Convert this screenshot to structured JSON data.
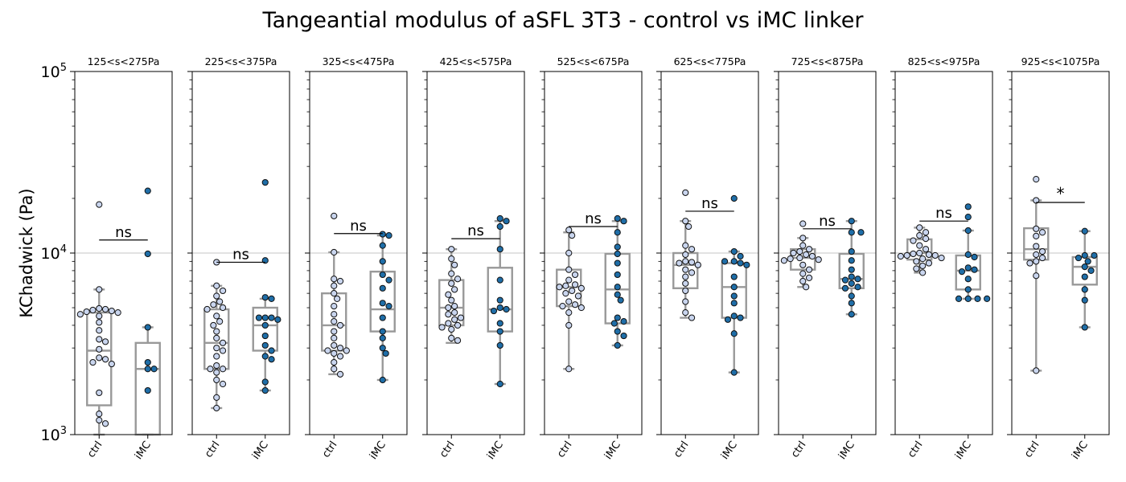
{
  "figure": {
    "title": "Tangeantial modulus of aSFL 3T3 - control vs iMC linker",
    "ylabel": "KChadwick (Pa)"
  },
  "colors": {
    "ctrl_fill": "#c9d5ee",
    "imc_fill": "#1f6ea8",
    "marker_edge": "#111111",
    "box": "#999999",
    "gridline": "#b0b0b0"
  },
  "chart_data": {
    "type": "scatter",
    "yscale": "log",
    "ylim": [
      1000,
      100000
    ],
    "y_ticks": [
      {
        "value": 1000,
        "label": "10",
        "exp": "3"
      },
      {
        "value": 10000,
        "label": "10",
        "exp": "4"
      },
      {
        "value": 100000,
        "label": "10",
        "exp": "5"
      }
    ],
    "categories": [
      "ctrl",
      "iMC"
    ],
    "grid": "horizontal line at 10^4",
    "panels": [
      {
        "title": "125<s<275Pa",
        "significance": {
          "label": "ns",
          "y": 11800
        },
        "groups": [
          {
            "name": "ctrl",
            "box": {
              "whislo": 1000,
              "q1": 1450,
              "med": 2900,
              "q3": 4700,
              "whishi": 6300
            },
            "values": [
              18500,
              6300,
              4950,
              4900,
              4850,
              4800,
              4750,
              4700,
              4600,
              4500,
              4150,
              3750,
              3350,
              3250,
              2950,
              2650,
              2600,
              2500,
              2450,
              1700,
              1300,
              1200,
              1150
            ]
          },
          {
            "name": "iMC",
            "box": {
              "whislo": 1000,
              "q1": 1000,
              "med": 2300,
              "q3": 3200,
              "whishi": 3900
            },
            "values": [
              22000,
              9900,
              3900,
              2500,
              2300,
              2300,
              1750
            ]
          }
        ]
      },
      {
        "title": "225<s<375Pa",
        "significance": {
          "label": "ns",
          "y": 8900
        },
        "groups": [
          {
            "name": "ctrl",
            "box": {
              "whislo": 1400,
              "q1": 2300,
              "med": 3200,
              "q3": 4900,
              "whishi": 6600
            },
            "values": [
              8900,
              6600,
              6200,
              5800,
              5400,
              5200,
              5000,
              4900,
              4500,
              4200,
              4000,
              3700,
              3400,
              3200,
              3000,
              2900,
              2700,
              2400,
              2300,
              2300,
              2200,
              2000,
              1900,
              1600,
              1400
            ]
          },
          {
            "name": "iMC",
            "box": {
              "whislo": 1750,
              "q1": 2900,
              "med": 4000,
              "q3": 5000,
              "whishi": 5600
            },
            "values": [
              24500,
              9100,
              5700,
              5600,
              4400,
              4400,
              4400,
              4300,
              4000,
              3500,
              3100,
              2900,
              2700,
              2600,
              1950,
              1750
            ]
          }
        ]
      },
      {
        "title": "325<s<475Pa",
        "significance": {
          "label": "ns",
          "y": 12800
        },
        "groups": [
          {
            "name": "ctrl",
            "box": {
              "whislo": 2150,
              "q1": 2900,
              "med": 4000,
              "q3": 6000,
              "whishi": 10100
            },
            "values": [
              16000,
              10100,
              7200,
              7000,
              6600,
              6000,
              5600,
              5100,
              4600,
              4200,
              4000,
              3700,
              3400,
              3100,
              3000,
              2900,
              2900,
              2800,
              2700,
              2500,
              2300,
              2150
            ]
          },
          {
            "name": "iMC",
            "box": {
              "whislo": 2000,
              "q1": 3700,
              "med": 4900,
              "q3": 7900,
              "whishi": 12500
            },
            "values": [
              12700,
              12500,
              11000,
              9000,
              7600,
              7100,
              6400,
              5300,
              5100,
              4400,
              3700,
              3400,
              3000,
              2800,
              2000
            ]
          }
        ]
      },
      {
        "title": "425<s<575Pa",
        "significance": {
          "label": "ns",
          "y": 12000
        },
        "groups": [
          {
            "name": "ctrl",
            "box": {
              "whislo": 3200,
              "q1": 4000,
              "med": 5000,
              "q3": 7100,
              "whishi": 10500
            },
            "values": [
              10500,
              9300,
              8600,
              7700,
              7200,
              6800,
              6300,
              5900,
              5500,
              5100,
              5000,
              4700,
              4600,
              4400,
              4300,
              4100,
              4000,
              3900,
              3800,
              3400,
              3300
            ]
          },
          {
            "name": "iMC",
            "box": {
              "whislo": 1900,
              "q1": 3700,
              "med": 4900,
              "q3": 8300,
              "whishi": 15000
            },
            "values": [
              15500,
              15000,
              14000,
              10500,
              7100,
              5500,
              5000,
              4900,
              4800,
              4100,
              3700,
              3100,
              1900
            ]
          }
        ]
      },
      {
        "title": "525<s<675Pa",
        "significance": {
          "label": "ns",
          "y": 14000
        },
        "groups": [
          {
            "name": "ctrl",
            "box": {
              "whislo": 2300,
              "q1": 5100,
              "med": 6500,
              "q3": 8100,
              "whishi": 13000
            },
            "values": [
              13400,
              12500,
              10000,
              8100,
              7600,
              7100,
              6700,
              6600,
              6500,
              6400,
              6200,
              6000,
              5800,
              5400,
              5200,
              5100,
              5000,
              4700,
              4000,
              2300
            ]
          },
          {
            "name": "iMC",
            "box": {
              "whislo": 3100,
              "q1": 4100,
              "med": 6300,
              "q3": 9900,
              "whishi": 15000
            },
            "values": [
              15500,
              15000,
              13000,
              10800,
              9900,
              8800,
              7600,
              6500,
              5900,
              5500,
              4400,
              4200,
              4100,
              3700,
              3500,
              3100
            ]
          }
        ]
      },
      {
        "title": "625<s<775Pa",
        "significance": {
          "label": "ns",
          "y": 17000
        },
        "groups": [
          {
            "name": "ctrl",
            "box": {
              "whislo": 4400,
              "q1": 6400,
              "med": 8600,
              "q3": 10000,
              "whishi": 15000
            },
            "values": [
              21500,
              15000,
              14000,
              11000,
              10500,
              9800,
              9000,
              8900,
              8800,
              8600,
              8100,
              7800,
              7400,
              6800,
              6200,
              5400,
              4700,
              4400
            ]
          },
          {
            "name": "iMC",
            "box": {
              "whislo": 2200,
              "q1": 4400,
              "med": 6500,
              "q3": 8800,
              "whishi": 10200
            },
            "values": [
              20000,
              10200,
              9600,
              9000,
              9000,
              8800,
              8600,
              7400,
              6500,
              5800,
              5300,
              4500,
              4400,
              4300,
              3600,
              2200
            ]
          }
        ]
      },
      {
        "title": "725<s<875Pa",
        "significance": {
          "label": "ns",
          "y": 13600
        },
        "groups": [
          {
            "name": "ctrl",
            "box": {
              "whislo": 6500,
              "q1": 8100,
              "med": 9400,
              "q3": 10500,
              "whishi": 12100
            },
            "values": [
              14500,
              12100,
              11000,
              10500,
              10200,
              10000,
              9800,
              9600,
              9400,
              9300,
              9200,
              9100,
              8600,
              8100,
              7700,
              7300,
              7000,
              6500
            ]
          },
          {
            "name": "iMC",
            "box": {
              "whislo": 4600,
              "q1": 6400,
              "med": 7200,
              "q3": 9900,
              "whishi": 15000
            },
            "values": [
              15000,
              13000,
              13000,
              10200,
              9100,
              8100,
              7400,
              7200,
              7100,
              6800,
              6500,
              6400,
              5800,
              5300,
              4600
            ]
          }
        ]
      },
      {
        "title": "825<s<975Pa",
        "significance": {
          "label": "ns",
          "y": 15000
        },
        "groups": [
          {
            "name": "ctrl",
            "box": {
              "whislo": 7800,
              "q1": 9200,
              "med": 10000,
              "q3": 11900,
              "whishi": 13800
            },
            "values": [
              13800,
              13000,
              12500,
              12000,
              11700,
              11000,
              10500,
              10000,
              9900,
              9800,
              9700,
              9700,
              9600,
              9400,
              9300,
              9000,
              8800,
              8500,
              8200,
              7800
            ]
          },
          {
            "name": "iMC",
            "box": {
              "whislo": 5600,
              "q1": 6300,
              "med": 8000,
              "q3": 9700,
              "whishi": 13300
            },
            "values": [
              18000,
              15800,
              13300,
              9800,
              9500,
              8300,
              8100,
              7900,
              7200,
              6300,
              5600,
              5600,
              5600,
              5600
            ]
          }
        ]
      },
      {
        "title": "925<s<1075Pa",
        "significance": {
          "label": "*",
          "y": 19000
        },
        "groups": [
          {
            "name": "ctrl",
            "box": {
              "whislo": 2250,
              "q1": 9200,
              "med": 10500,
              "q3": 13700,
              "whishi": 19500
            },
            "values": [
              25500,
              19500,
              13600,
              13000,
              12400,
              10900,
              10200,
              9800,
              9400,
              9000,
              8800,
              7500,
              2250
            ]
          },
          {
            "name": "iMC",
            "box": {
              "whislo": 3900,
              "q1": 6700,
              "med": 8400,
              "q3": 9500,
              "whishi": 13200
            },
            "values": [
              13200,
              9700,
              9700,
              9400,
              9000,
              8400,
              8000,
              7400,
              6300,
              5500,
              3900
            ]
          }
        ]
      }
    ]
  }
}
